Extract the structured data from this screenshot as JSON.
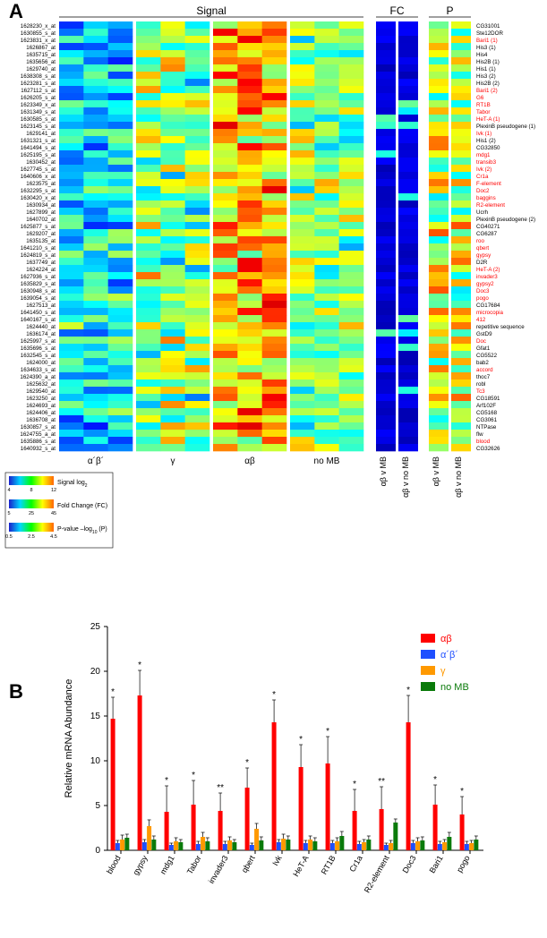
{
  "figure": {
    "panelA": {
      "letter": "A",
      "section_labels": [
        "Signal",
        "FC",
        "P"
      ],
      "column_labels": [
        "α´β´",
        "γ",
        "αβ",
        "no MB",
        "αβ v MB",
        "αβ v no MB",
        "αβ v MB",
        "αβ v no MB"
      ],
      "probe_ids": [
        "1628230_x_at",
        "1630855_s_at",
        "1623831_x_at",
        "1626867_at",
        "1635715_at",
        "1635656_at",
        "1629740_at",
        "1638308_s_at",
        "1623281_s_at",
        "1627112_s_at",
        "1626205_s_at",
        "1623349_x_at",
        "1631349_s_at",
        "1630585_s_at",
        "1623145_s_at",
        "1629141_at",
        "1631321_s_at",
        "1641494_s_at",
        "1625195_s_at",
        "1630452_at",
        "1627745_s_at",
        "1640606_x_at",
        "1623575_at",
        "1632295_s_at",
        "1630420_x_at",
        "1630934_at",
        "1627899_at",
        "1640702_at",
        "1625877_s_at",
        "1629207_at",
        "1635135_at",
        "1641210_s_at",
        "1624819_s_at",
        "1637749_at",
        "1624224_at",
        "1627936_s_at",
        "1635829_s_at",
        "1630948_s_at",
        "1639054_s_at",
        "1627513_at",
        "1641450_s_at",
        "1640167_s_at",
        "1624440_at",
        "1636174_at",
        "1625997_s_at",
        "1635696_s_at",
        "1632545_s_at",
        "1624000_at",
        "1634633_s_at",
        "1624390_a_at",
        "1625632_at",
        "1629540_at",
        "1623250_at",
        "1624693_at",
        "1624406_at",
        "1636708_at",
        "1630857_s_at",
        "1624755_a_at",
        "1635886_s_at",
        "1640932_s_at"
      ],
      "gene_labels": [
        {
          "text": "CG31001",
          "red": false
        },
        {
          "text": "Ste12DOR",
          "red": false
        },
        {
          "text": "Bari1 (1)",
          "red": true
        },
        {
          "text": "His3 (1)",
          "red": false
        },
        {
          "text": "His4",
          "red": false
        },
        {
          "text": "His2B (1)",
          "red": false
        },
        {
          "text": "His1 (1)",
          "red": false
        },
        {
          "text": "His3 (2)",
          "red": false
        },
        {
          "text": "His2B (2)",
          "red": false
        },
        {
          "text": "Bari1 (2)",
          "red": true
        },
        {
          "text": "G6",
          "red": true
        },
        {
          "text": "RT1B",
          "red": true
        },
        {
          "text": "Tabor",
          "red": true
        },
        {
          "text": "HeT-A (1)",
          "red": true
        },
        {
          "text": "PlexinB pseudogene (1)",
          "red": false
        },
        {
          "text": "Ivk (1)",
          "red": true
        },
        {
          "text": "His1 (2)",
          "red": false
        },
        {
          "text": "CG32850",
          "red": false
        },
        {
          "text": "mdg1",
          "red": true
        },
        {
          "text": "transib3",
          "red": true
        },
        {
          "text": "Ivk (2)",
          "red": true
        },
        {
          "text": "Cr1a",
          "red": true
        },
        {
          "text": "F-element",
          "red": true
        },
        {
          "text": "Doc2",
          "red": true
        },
        {
          "text": "baggins",
          "red": true
        },
        {
          "text": "R2-element",
          "red": true
        },
        {
          "text": "Ucrh",
          "red": false
        },
        {
          "text": "PlexinB pseudogene (2)",
          "red": false
        },
        {
          "text": "CG40271",
          "red": false
        },
        {
          "text": "CG6287",
          "red": false
        },
        {
          "text": "roo",
          "red": true
        },
        {
          "text": "qbert",
          "red": true
        },
        {
          "text": "gypsy",
          "red": true
        },
        {
          "text": "D2R",
          "red": false
        },
        {
          "text": "HeT-A (2)",
          "red": true
        },
        {
          "text": "invader3",
          "red": true
        },
        {
          "text": "gypsy2",
          "red": true
        },
        {
          "text": "Doc3",
          "red": true
        },
        {
          "text": "pogo",
          "red": true
        },
        {
          "text": "CG17684",
          "red": false
        },
        {
          "text": "microcopia",
          "red": true
        },
        {
          "text": "412",
          "red": true
        },
        {
          "text": "repetitive sequence",
          "red": false
        },
        {
          "text": "GstD9",
          "red": false
        },
        {
          "text": "Doc",
          "red": true
        },
        {
          "text": "Gfat1",
          "red": false
        },
        {
          "text": "CG5522",
          "red": false
        },
        {
          "text": "bab2",
          "red": false
        },
        {
          "text": "accord",
          "red": true
        },
        {
          "text": "thoc7",
          "red": false
        },
        {
          "text": "robl",
          "red": false
        },
        {
          "text": "Tc3",
          "red": true
        },
        {
          "text": "CG18591",
          "red": false
        },
        {
          "text": "Arf102F",
          "red": false
        },
        {
          "text": "CG5168",
          "red": false
        },
        {
          "text": "CG3061",
          "red": false
        },
        {
          "text": "NTPase",
          "red": false
        },
        {
          "text": "flw",
          "red": false
        },
        {
          "text": "blood",
          "red": true
        },
        {
          "text": "CG32626",
          "red": false
        }
      ],
      "heatmap_scales": {
        "signal": {
          "label": "Signal log",
          "sub": "2",
          "ticks": [
            "4",
            "8",
            "12"
          ],
          "stops": [
            "#1a1fcc",
            "#00d7ff",
            "#00ff00",
            "#ffff00",
            "#ff6600"
          ]
        },
        "fc": {
          "label": "Fold Change (FC)",
          "ticks": [
            "5",
            "25",
            "45"
          ],
          "stops": [
            "#1a1fcc",
            "#00d7ff",
            "#00ff00",
            "#ffff00",
            "#ff6600"
          ]
        },
        "p": {
          "label": "P-value –log",
          "sub": "10",
          "tail": " (P)",
          "ticks": [
            "0.5",
            "2.5",
            "4.5"
          ],
          "stops": [
            "#1a1fcc",
            "#00d7ff",
            "#00ff00",
            "#ffff00",
            "#ff6600"
          ]
        }
      },
      "signal_cols": 12,
      "narrow_cols": 2,
      "heatmap_values": "random-jet"
    },
    "panelB": {
      "letter": "B",
      "y_label": "Relative mRNA Abundance",
      "y_ticks": [
        0,
        5,
        10,
        15,
        20,
        25
      ],
      "y_max": 25,
      "legend": [
        {
          "label": "αβ",
          "color": "#ff0000"
        },
        {
          "label": "α´β´",
          "color": "#1f4fff"
        },
        {
          "label": "γ",
          "color": "#ff9900"
        },
        {
          "label": "no MB",
          "color": "#0a7a0a"
        }
      ],
      "bar_colors": [
        "#ff0000",
        "#1f4fff",
        "#ff9900",
        "#0a7a0a"
      ],
      "categories": [
        "blood",
        "gypsy",
        "mdg1",
        "Tabor",
        "invader3",
        "qbert",
        "Ivk",
        "HeT-A",
        "RT1B",
        "Cr1a",
        "R2-element",
        "Doc3",
        "Bari1",
        "pogo"
      ],
      "series": {
        "ab": [
          14.7,
          17.3,
          4.3,
          5.1,
          4.4,
          7.0,
          14.3,
          9.3,
          9.7,
          4.4,
          4.6,
          14.3,
          5.1,
          4.0
        ],
        "apbp": [
          0.8,
          0.9,
          0.6,
          0.7,
          0.7,
          0.6,
          0.9,
          0.8,
          0.8,
          0.7,
          0.6,
          0.8,
          0.7,
          0.7
        ],
        "gamma": [
          1.2,
          2.7,
          1.0,
          1.5,
          1.1,
          2.4,
          1.3,
          1.2,
          1.0,
          0.9,
          0.8,
          1.0,
          0.9,
          0.8
        ],
        "nomb": [
          1.4,
          1.2,
          0.9,
          1.0,
          0.9,
          1.1,
          1.2,
          1.0,
          1.6,
          1.2,
          3.1,
          1.1,
          1.5,
          1.2
        ]
      },
      "errors": {
        "ab": [
          2.4,
          2.8,
          2.9,
          2.7,
          2.0,
          2.2,
          2.5,
          2.5,
          3.0,
          2.4,
          2.5,
          3.0,
          2.2,
          2.0
        ],
        "apbp": [
          0.3,
          0.3,
          0.2,
          0.3,
          0.3,
          0.2,
          0.3,
          0.3,
          0.3,
          0.3,
          0.2,
          0.3,
          0.3,
          0.3
        ],
        "gamma": [
          0.5,
          0.7,
          0.4,
          0.5,
          0.4,
          0.6,
          0.5,
          0.4,
          0.4,
          0.3,
          0.3,
          0.4,
          0.3,
          0.3
        ],
        "nomb": [
          0.4,
          0.4,
          0.3,
          0.4,
          0.3,
          0.4,
          0.4,
          0.4,
          0.5,
          0.4,
          0.4,
          0.4,
          0.5,
          0.4
        ]
      },
      "sigmarks": [
        "*",
        "*",
        "*",
        "*",
        "**",
        "*",
        "*",
        "*",
        "*",
        "*",
        "**",
        "*",
        "*",
        "*"
      ],
      "axis_color": "#000000",
      "axis_font_size": 10,
      "label_font_size": 9
    }
  }
}
